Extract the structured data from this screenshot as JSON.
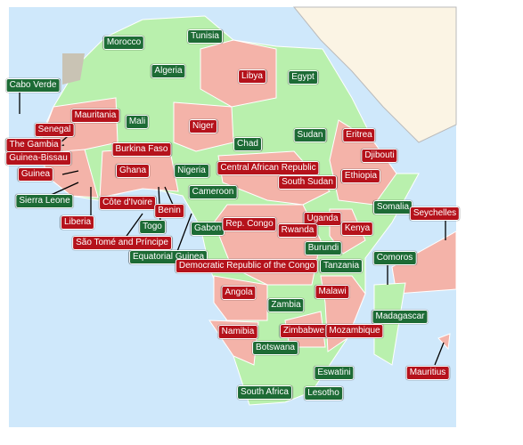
{
  "labels": [
    {
      "text": "Morocco",
      "color": "#1d6b35"
    },
    {
      "text": "Tunisia",
      "color": "#1d6b35"
    },
    {
      "text": "Algeria",
      "color": "#1d6b35"
    },
    {
      "text": "Egypt",
      "color": "#1d6b35"
    },
    {
      "text": "Cabo Verde",
      "color": "#1d6b35"
    },
    {
      "text": "Mali",
      "color": "#1d6b35"
    },
    {
      "text": "Chad",
      "color": "#1d6b35"
    },
    {
      "text": "Sudan",
      "color": "#1d6b35"
    },
    {
      "text": "Nigeria",
      "color": "#1d6b35"
    },
    {
      "text": "Sierra Leone",
      "color": "#1d6b35"
    },
    {
      "text": "Cameroon",
      "color": "#1d6b35"
    },
    {
      "text": "Togo",
      "color": "#1d6b35"
    },
    {
      "text": "Gabon",
      "color": "#1d6b35"
    },
    {
      "text": "Somalia",
      "color": "#1d6b35"
    },
    {
      "text": "Burundi",
      "color": "#1d6b35"
    },
    {
      "text": "Tanzania",
      "color": "#1d6b35"
    },
    {
      "text": "Comoros",
      "color": "#1d6b35"
    },
    {
      "text": "Equatorial Guinea",
      "color": "#1d6b35"
    },
    {
      "text": "Zambia",
      "color": "#1d6b35"
    },
    {
      "text": "Madagascar",
      "color": "#1d6b35"
    },
    {
      "text": "Botswana",
      "color": "#1d6b35"
    },
    {
      "text": "Eswatini",
      "color": "#1d6b35"
    },
    {
      "text": "South Africa",
      "color": "#1d6b35"
    },
    {
      "text": "Lesotho",
      "color": "#1d6b35"
    },
    {
      "text": "Libya",
      "color": "#b5121b"
    },
    {
      "text": "Mauritania",
      "color": "#b5121b"
    },
    {
      "text": "Niger",
      "color": "#b5121b"
    },
    {
      "text": "Senegal",
      "color": "#b5121b"
    },
    {
      "text": "The Gambia",
      "color": "#b5121b"
    },
    {
      "text": "Eritrea",
      "color": "#b5121b"
    },
    {
      "text": "Burkina Faso",
      "color": "#b5121b"
    },
    {
      "text": "Djibouti",
      "color": "#b5121b"
    },
    {
      "text": "Guinea-Bissau",
      "color": "#b5121b"
    },
    {
      "text": "Central African Republic",
      "color": "#b5121b"
    },
    {
      "text": "Ghana",
      "color": "#b5121b"
    },
    {
      "text": "Guinea",
      "color": "#b5121b"
    },
    {
      "text": "South Sudan",
      "color": "#b5121b"
    },
    {
      "text": "Ethiopia",
      "color": "#b5121b"
    },
    {
      "text": "Côte d'Ivoire",
      "color": "#b5121b"
    },
    {
      "text": "Benin",
      "color": "#b5121b"
    },
    {
      "text": "Seychelles",
      "color": "#b5121b"
    },
    {
      "text": "Uganda",
      "color": "#b5121b"
    },
    {
      "text": "Rep. Congo",
      "color": "#b5121b"
    },
    {
      "text": "Rwanda",
      "color": "#b5121b"
    },
    {
      "text": "Kenya",
      "color": "#b5121b"
    },
    {
      "text": "Liberia",
      "color": "#b5121b"
    },
    {
      "text": "São Tomé and Príncipe",
      "color": "#b5121b"
    },
    {
      "text": "Democratic Republic of the Congo",
      "color": "#b5121b"
    },
    {
      "text": "Angola",
      "color": "#b5121b"
    },
    {
      "text": "Malawi",
      "color": "#b5121b"
    },
    {
      "text": "Zimbabwe",
      "color": "#b5121b"
    },
    {
      "text": "Namibia",
      "color": "#b5121b"
    },
    {
      "text": "Mozambique",
      "color": "#b5121b"
    },
    {
      "text": "Mauritius",
      "color": "#b5121b"
    }
  ]
}
